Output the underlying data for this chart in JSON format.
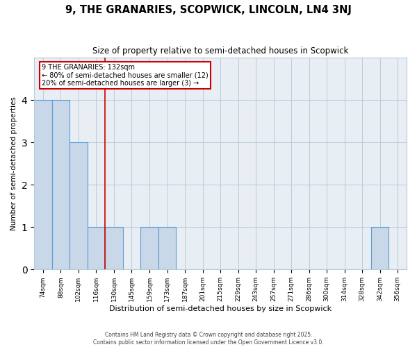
{
  "title": "9, THE GRANARIES, SCOPWICK, LINCOLN, LN4 3NJ",
  "subtitle": "Size of property relative to semi-detached houses in Scopwick",
  "xlabel": "Distribution of semi-detached houses by size in Scopwick",
  "ylabel": "Number of semi-detached properties",
  "bins": [
    "74sqm",
    "88sqm",
    "102sqm",
    "116sqm",
    "130sqm",
    "145sqm",
    "159sqm",
    "173sqm",
    "187sqm",
    "201sqm",
    "215sqm",
    "229sqm",
    "243sqm",
    "257sqm",
    "271sqm",
    "286sqm",
    "300sqm",
    "314sqm",
    "328sqm",
    "342sqm",
    "356sqm"
  ],
  "values": [
    4,
    4,
    3,
    1,
    1,
    0,
    1,
    1,
    0,
    0,
    0,
    0,
    0,
    0,
    0,
    0,
    0,
    0,
    0,
    1,
    0
  ],
  "bar_color": "#c8d8e8",
  "bar_edge_color": "#5b9bd5",
  "red_line_x": 3.5,
  "property_label": "9 THE GRANARIES: 132sqm",
  "pct_smaller_label": "← 80% of semi-detached houses are smaller (12)",
  "pct_larger_label": "20% of semi-detached houses are larger (3) →",
  "annotation_box_color": "#cc0000",
  "ylim": [
    0,
    5
  ],
  "yticks": [
    0,
    1,
    2,
    3,
    4,
    5
  ],
  "bg_color": "#e8eef4",
  "grid_color": "#b8ccd8",
  "footer1": "Contains HM Land Registry data © Crown copyright and database right 2025.",
  "footer2": "Contains public sector information licensed under the Open Government Licence v3.0."
}
